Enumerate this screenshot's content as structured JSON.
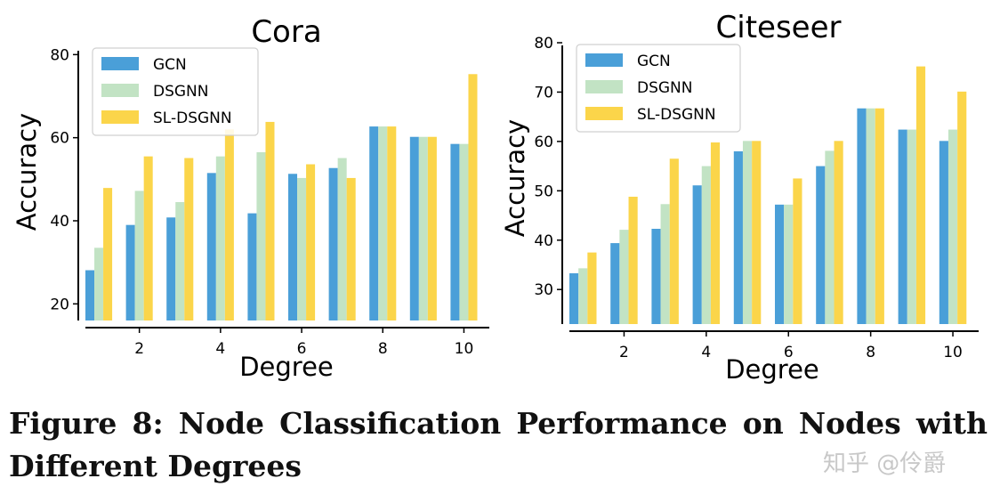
{
  "caption": "Figure 8: Node Classification Performance on Nodes with Different Degrees",
  "watermark": "知乎 @伶爵",
  "colors": {
    "GCN": "#4a9fd8",
    "DSGNN": "#c2e3c4",
    "SL-DSGNN": "#fbd54a"
  },
  "chart_data": [
    {
      "type": "bar",
      "title": "Cora",
      "xlabel": "Degree",
      "ylabel": "Accuracy",
      "categories": [
        1,
        2,
        3,
        4,
        5,
        6,
        7,
        8,
        9,
        10
      ],
      "xticks": [
        2,
        4,
        6,
        8,
        10
      ],
      "yticks": [
        20,
        40,
        60,
        80
      ],
      "ylim": [
        16,
        82
      ],
      "legend": "top-left",
      "series": [
        {
          "name": "GCN",
          "values": [
            28.1,
            39.0,
            40.8,
            51.5,
            41.8,
            51.3,
            52.7,
            62.7,
            60.2,
            58.5
          ]
        },
        {
          "name": "DSGNN",
          "values": [
            33.5,
            47.2,
            44.5,
            55.5,
            56.5,
            50.3,
            55.1,
            62.7,
            60.2,
            58.5
          ]
        },
        {
          "name": "SL-DSGNN",
          "values": [
            47.9,
            55.5,
            55.1,
            62.0,
            63.8,
            53.6,
            50.3,
            62.7,
            60.2,
            75.3
          ]
        }
      ]
    },
    {
      "type": "bar",
      "title": "Citeseer",
      "xlabel": "Degree",
      "ylabel": "Accuracy",
      "categories": [
        1,
        2,
        3,
        4,
        5,
        6,
        7,
        8,
        9,
        10
      ],
      "xticks": [
        2,
        4,
        6,
        8,
        10
      ],
      "yticks": [
        30,
        40,
        50,
        60,
        70,
        80
      ],
      "ylim": [
        23,
        80
      ],
      "legend": "top-left",
      "series": [
        {
          "name": "GCN",
          "values": [
            33.3,
            39.4,
            42.3,
            51.1,
            58.0,
            47.2,
            55.0,
            66.7,
            62.4,
            60.1
          ]
        },
        {
          "name": "DSGNN",
          "values": [
            34.3,
            42.1,
            47.3,
            55.0,
            60.1,
            47.2,
            58.1,
            66.7,
            62.4,
            62.4
          ]
        },
        {
          "name": "SL-DSGNN",
          "values": [
            37.5,
            48.8,
            56.5,
            59.8,
            60.1,
            52.5,
            60.1,
            66.7,
            75.2,
            70.1
          ]
        }
      ]
    }
  ]
}
